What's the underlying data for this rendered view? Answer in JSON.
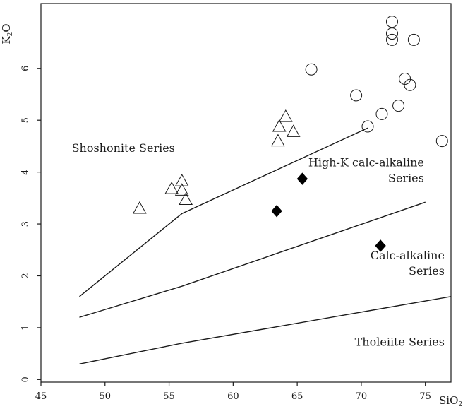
{
  "chart_data": {
    "type": "scatter",
    "xlabel": "SiO2",
    "ylabel": "K2O",
    "xlim": [
      45,
      77
    ],
    "ylim": [
      -0.05,
      7.25
    ],
    "x_ticks": [
      "45",
      "50",
      "55",
      "60",
      "65",
      "70",
      "75"
    ],
    "y_ticks": [
      "0",
      "1",
      "2",
      "3",
      "4",
      "5",
      "6"
    ],
    "x_tick_values": [
      45,
      50,
      55,
      60,
      65,
      70,
      75
    ],
    "y_tick_values": [
      0,
      1,
      2,
      3,
      4,
      5,
      6
    ],
    "axis_titles": {
      "x_main": "SiO",
      "x_sub": "2",
      "y_main": "K",
      "y_sub": "2",
      "y_tail": "O"
    },
    "boundary_lines": [
      {
        "x": [
          48,
          56,
          70.5
        ],
        "y": [
          1.6,
          3.2,
          4.85
        ]
      },
      {
        "x": [
          48,
          56,
          75
        ],
        "y": [
          1.2,
          1.8,
          3.42
        ]
      },
      {
        "x": [
          48,
          56,
          77
        ],
        "y": [
          0.3,
          0.7,
          1.6
        ]
      }
    ],
    "region_labels": [
      {
        "id": "shoshonite",
        "lines": [
          "Shoshonite Series"
        ],
        "x": 47.4,
        "y": 4.39,
        "anchor": "start"
      },
      {
        "id": "high-k",
        "lines": [
          "High-K calc-alkaline",
          "Series"
        ],
        "x": 74.9,
        "y": 4.11,
        "anchor": "end"
      },
      {
        "id": "calc-alkaline",
        "lines": [
          "Calc-alkaline",
          "Series"
        ],
        "x": 76.5,
        "y": 2.32,
        "anchor": "end"
      },
      {
        "id": "tholeiite",
        "lines": [
          "Tholeiite Series"
        ],
        "x": 76.5,
        "y": 0.65,
        "anchor": "end"
      }
    ],
    "series": [
      {
        "marker": "triangle",
        "color": "#1a1a1a",
        "x": [
          52.7,
          55.2,
          56.0,
          56.0,
          56.3,
          63.5,
          63.6,
          64.1,
          64.7
        ],
        "y": [
          3.3,
          3.68,
          3.65,
          3.83,
          3.47,
          4.6,
          4.88,
          5.07,
          4.78
        ]
      },
      {
        "marker": "circle",
        "color": "#1a1a1a",
        "x": [
          72.4,
          72.4,
          72.4,
          74.1,
          66.1,
          73.4,
          73.8,
          69.6,
          72.9,
          71.6,
          70.5,
          76.3
        ],
        "y": [
          6.9,
          6.67,
          6.55,
          6.55,
          5.98,
          5.8,
          5.68,
          5.48,
          5.28,
          5.12,
          4.88,
          4.6
        ]
      },
      {
        "marker": "diamond",
        "color": "#000000",
        "x": [
          65.4,
          63.4,
          71.5
        ],
        "y": [
          3.87,
          3.25,
          2.58
        ]
      }
    ]
  }
}
